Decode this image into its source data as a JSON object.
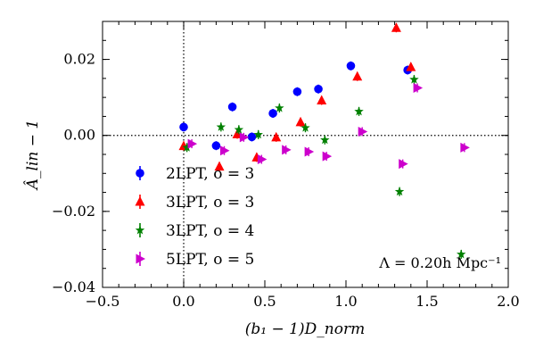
{
  "chart_data": {
    "type": "scatter",
    "xlabel": "(b₁ − 1)D_norm",
    "ylabel": "Â_lin − 1",
    "xlim": [
      -0.5,
      2.0
    ],
    "ylim": [
      -0.04,
      0.03
    ],
    "xticks": [
      -0.5,
      0.0,
      0.5,
      1.0,
      1.5,
      2.0
    ],
    "xtick_labels": [
      "−0.5",
      "0.0",
      "0.5",
      "1.0",
      "1.5",
      "2.0"
    ],
    "yticks": [
      -0.04,
      -0.02,
      0.0,
      0.02
    ],
    "ytick_labels": [
      "−0.04",
      "−0.02",
      "0.00",
      "0.02"
    ],
    "reference_lines": {
      "x": 0.0,
      "y": 0.0,
      "style": "dotted"
    },
    "grid": false,
    "legend_position": "lower-left",
    "annotation": "Λ = 0.20h Mpc⁻¹",
    "series": [
      {
        "name": "2LPT, o = 3",
        "color": "#0000ff",
        "marker": "circle",
        "points": [
          [
            0.0,
            0.0022
          ],
          [
            0.2,
            -0.0027
          ],
          [
            0.3,
            0.0075
          ],
          [
            0.42,
            -0.0004
          ],
          [
            0.55,
            0.0058
          ],
          [
            0.7,
            0.0115
          ],
          [
            0.83,
            0.0122
          ],
          [
            1.03,
            0.0183
          ],
          [
            1.38,
            0.0172
          ]
        ]
      },
      {
        "name": "3LPT, o = 3",
        "color": "#ff0000",
        "marker": "triangle-up",
        "points": [
          [
            0.0,
            -0.0028
          ],
          [
            0.22,
            -0.0082
          ],
          [
            0.33,
            0.0003
          ],
          [
            0.45,
            -0.0058
          ],
          [
            0.57,
            -0.0005
          ],
          [
            0.72,
            0.0035
          ],
          [
            0.85,
            0.0092
          ],
          [
            1.07,
            0.0155
          ],
          [
            1.31,
            0.0283
          ],
          [
            1.4,
            0.018
          ]
        ]
      },
      {
        "name": "3LPT, o = 4",
        "color": "#008000",
        "marker": "star",
        "points": [
          [
            0.02,
            -0.0032
          ],
          [
            0.23,
            0.0022
          ],
          [
            0.34,
            0.0015
          ],
          [
            0.46,
            0.0002
          ],
          [
            0.59,
            0.0072
          ],
          [
            0.75,
            0.002
          ],
          [
            0.87,
            -0.0012
          ],
          [
            1.08,
            0.0063
          ],
          [
            1.33,
            -0.0148
          ],
          [
            1.42,
            0.0147
          ],
          [
            1.71,
            -0.0313
          ]
        ]
      },
      {
        "name": "5LPT, o = 5",
        "color": "#cc00cc",
        "marker": "triangle-right",
        "points": [
          [
            0.05,
            -0.0022
          ],
          [
            0.25,
            -0.004
          ],
          [
            0.37,
            -0.0005
          ],
          [
            0.48,
            -0.0063
          ],
          [
            0.63,
            -0.0038
          ],
          [
            0.77,
            -0.0043
          ],
          [
            0.88,
            -0.0055
          ],
          [
            1.1,
            0.001
          ],
          [
            1.35,
            -0.0075
          ],
          [
            1.44,
            0.0125
          ],
          [
            1.73,
            -0.0032
          ]
        ]
      }
    ]
  }
}
